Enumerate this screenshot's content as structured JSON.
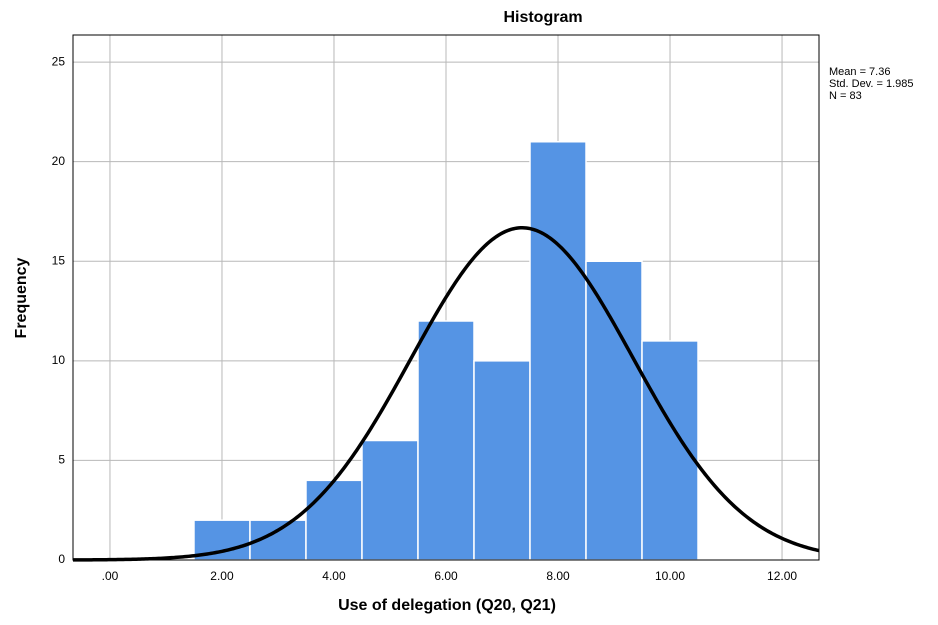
{
  "chart_data": {
    "type": "histogram",
    "title": "Histogram",
    "xlabel": "Use of delegation (Q20, Q21)",
    "ylabel": "Frequency",
    "bins": [
      1.5,
      2.5,
      3.5,
      4.5,
      5.5,
      6.5,
      7.5,
      8.5,
      9.5,
      10.5
    ],
    "counts": [
      2,
      2,
      4,
      6,
      12,
      10,
      21,
      15,
      11
    ],
    "color": "#5594e4",
    "curve_color": "#000000",
    "xlim": [
      -0.66,
      12.66
    ],
    "ylim": [
      0,
      26.36
    ],
    "xticks": [
      {
        "value": 0,
        "label": ".00"
      },
      {
        "value": 2,
        "label": "2.00"
      },
      {
        "value": 4,
        "label": "4.00"
      },
      {
        "value": 6,
        "label": "6.00"
      },
      {
        "value": 8,
        "label": "8.00"
      },
      {
        "value": 10,
        "label": "10.00"
      },
      {
        "value": 12,
        "label": "12.00"
      }
    ],
    "yticks": [
      0,
      5,
      10,
      15,
      20,
      25
    ],
    "grid": true,
    "stats": [
      {
        "value": 7.36,
        "label": "Mean = 7.36"
      },
      {
        "value": 1.985,
        "label": "Std. Dev. = 1.985"
      },
      {
        "value": 83,
        "label": "N = 83"
      }
    ]
  }
}
